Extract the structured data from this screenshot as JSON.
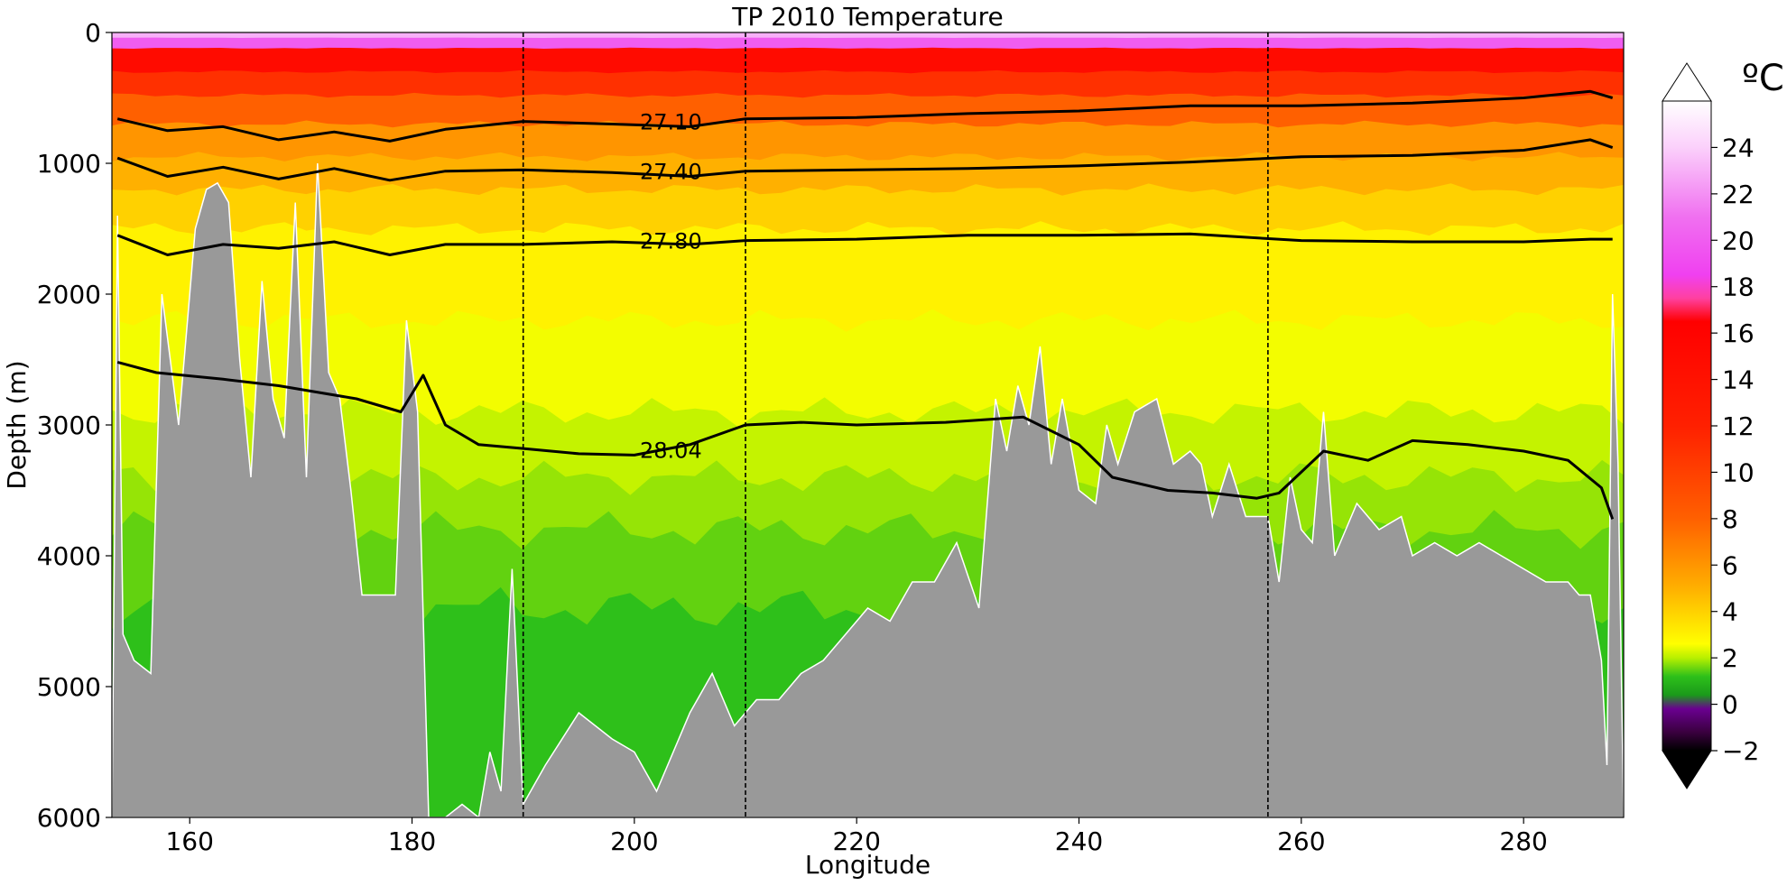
{
  "chart_data": {
    "type": "heatmap",
    "title": "TP 2010 Temperature",
    "xlabel": "Longitude",
    "ylabel": "Depth (m)",
    "xlim": [
      153,
      289
    ],
    "ylim": [
      6000,
      0
    ],
    "x_ticks": [
      160,
      180,
      200,
      220,
      240,
      260,
      280
    ],
    "y_ticks": [
      0,
      1000,
      2000,
      3000,
      4000,
      5000,
      6000
    ],
    "grid": false,
    "colorbar": {
      "unit": "ºC",
      "range": [
        -2,
        26
      ],
      "ticks": [
        -2,
        0,
        2,
        4,
        6,
        8,
        10,
        12,
        14,
        16,
        18,
        20,
        22,
        24
      ],
      "stops": [
        {
          "t": -2,
          "color": "#000000"
        },
        {
          "t": -1.2,
          "color": "#3a003f"
        },
        {
          "t": -0.2,
          "color": "#6a0090"
        },
        {
          "t": 0.4,
          "color": "#1a9a1a"
        },
        {
          "t": 1.2,
          "color": "#2ec01a"
        },
        {
          "t": 2.0,
          "color": "#b8f000"
        },
        {
          "t": 2.6,
          "color": "#ffff00"
        },
        {
          "t": 5.0,
          "color": "#ffb000"
        },
        {
          "t": 8.0,
          "color": "#ff6000"
        },
        {
          "t": 12.0,
          "color": "#ff2000"
        },
        {
          "t": 16.5,
          "color": "#ff0000"
        },
        {
          "t": 17.5,
          "color": "#ff40a0"
        },
        {
          "t": 18.5,
          "color": "#f040f0"
        },
        {
          "t": 21.0,
          "color": "#f070f0"
        },
        {
          "t": 24.0,
          "color": "#fbd0fb"
        },
        {
          "t": 26.0,
          "color": "#ffffff"
        }
      ]
    },
    "temperature_layers": [
      {
        "t": 1.2,
        "base_depth": 6000
      },
      {
        "t": 1.5,
        "base_depth": 4400
      },
      {
        "t": 1.8,
        "base_depth": 3800
      },
      {
        "t": 2.1,
        "base_depth": 3400
      },
      {
        "t": 2.5,
        "base_depth": 2900
      },
      {
        "t": 3.0,
        "base_depth": 2200
      },
      {
        "t": 4.0,
        "base_depth": 1500
      },
      {
        "t": 5.0,
        "base_depth": 1200
      },
      {
        "t": 6.0,
        "base_depth": 950
      },
      {
        "t": 8.0,
        "base_depth": 700
      },
      {
        "t": 11.0,
        "base_depth": 480
      },
      {
        "t": 15.0,
        "base_depth": 300
      },
      {
        "t": 20.0,
        "base_depth": 120
      },
      {
        "t": 23.0,
        "base_depth": 40
      }
    ],
    "density_contours": [
      {
        "label": "27.10",
        "label_x": 200.5,
        "label_depth": 680,
        "x": [
          153.5,
          158,
          163,
          168,
          173,
          178,
          183,
          190,
          198,
          205,
          210,
          220,
          230,
          240,
          250,
          260,
          270,
          280,
          286,
          288
        ],
        "depth": [
          660,
          750,
          720,
          820,
          760,
          830,
          740,
          680,
          700,
          720,
          660,
          650,
          620,
          600,
          560,
          560,
          540,
          500,
          450,
          500
        ]
      },
      {
        "label": "27.40",
        "label_x": 200.5,
        "label_depth": 1060,
        "x": [
          153.5,
          158,
          163,
          168,
          173,
          178,
          183,
          190,
          198,
          205,
          210,
          220,
          230,
          240,
          250,
          260,
          270,
          280,
          286,
          288
        ],
        "depth": [
          960,
          1100,
          1030,
          1120,
          1040,
          1130,
          1060,
          1050,
          1070,
          1100,
          1060,
          1050,
          1040,
          1020,
          990,
          950,
          940,
          900,
          820,
          880
        ]
      },
      {
        "label": "27.80",
        "label_x": 200.5,
        "label_depth": 1590,
        "x": [
          153.5,
          158,
          163,
          168,
          173,
          178,
          183,
          190,
          198,
          205,
          210,
          220,
          230,
          240,
          250,
          260,
          270,
          280,
          286,
          288
        ],
        "depth": [
          1550,
          1700,
          1620,
          1650,
          1600,
          1700,
          1620,
          1620,
          1600,
          1620,
          1590,
          1580,
          1550,
          1550,
          1540,
          1590,
          1600,
          1600,
          1580,
          1580
        ]
      },
      {
        "label": "28.04",
        "label_x": 200.5,
        "label_depth": 3190,
        "x": [
          153.5,
          157,
          163,
          168,
          175,
          179,
          181,
          183,
          186,
          190,
          195,
          200,
          205,
          210,
          215,
          220,
          228,
          235,
          240,
          243,
          248,
          252,
          256,
          258,
          262,
          266,
          270,
          275,
          280,
          284,
          287,
          288
        ],
        "depth": [
          2520,
          2600,
          2650,
          2700,
          2800,
          2900,
          2620,
          3000,
          3150,
          3180,
          3220,
          3230,
          3150,
          3000,
          2980,
          3000,
          2980,
          2940,
          3150,
          3400,
          3500,
          3520,
          3560,
          3520,
          3200,
          3270,
          3120,
          3150,
          3200,
          3270,
          3480,
          3720
        ]
      }
    ],
    "section_dividers_longitude": [
      190,
      210,
      257
    ],
    "bathymetry": {
      "longitude": [
        153,
        153.5,
        154,
        155,
        156.5,
        157.5,
        159,
        160.5,
        161.5,
        162.5,
        163.5,
        164.5,
        165.5,
        166.5,
        167.5,
        168.5,
        169.5,
        170.5,
        171.5,
        172.5,
        173.5,
        174.5,
        175.5,
        177,
        178.5,
        179.5,
        180.5,
        181.5,
        183,
        184.5,
        186,
        187,
        188,
        189,
        190,
        192,
        195,
        198,
        200,
        202,
        205,
        207,
        209,
        211,
        213,
        215,
        217,
        219,
        221,
        223,
        225,
        227,
        229,
        231,
        232.5,
        233.5,
        234.5,
        235.5,
        236.5,
        237.5,
        238.5,
        240,
        241.5,
        242.5,
        243.5,
        245,
        247,
        248.5,
        250,
        251,
        252,
        253.5,
        255,
        256,
        257,
        258,
        259,
        260,
        261,
        262,
        263,
        265,
        267,
        269,
        270,
        272,
        274,
        276,
        278,
        280,
        282,
        284,
        285,
        286,
        287,
        287.5,
        288,
        288.5,
        289
      ],
      "depth": [
        6000,
        1400,
        4600,
        4800,
        4900,
        2000,
        3000,
        1500,
        1200,
        1150,
        1300,
        2500,
        3400,
        1900,
        2800,
        3100,
        1300,
        3400,
        1000,
        2600,
        2800,
        3500,
        4300,
        4300,
        4300,
        2200,
        2900,
        6000,
        6000,
        5900,
        6000,
        5500,
        5800,
        4100,
        5900,
        5600,
        5200,
        5400,
        5500,
        5800,
        5200,
        4900,
        5300,
        5100,
        5100,
        4900,
        4800,
        4600,
        4400,
        4500,
        4200,
        4200,
        3900,
        4400,
        2800,
        3200,
        2700,
        3000,
        2400,
        3300,
        2800,
        3500,
        3600,
        3000,
        3300,
        2900,
        2800,
        3300,
        3200,
        3300,
        3700,
        3300,
        3700,
        3700,
        3700,
        4200,
        3400,
        3800,
        3900,
        2900,
        4000,
        3600,
        3800,
        3700,
        4000,
        3900,
        4000,
        3900,
        4000,
        4100,
        4200,
        4200,
        4300,
        4300,
        4800,
        5600,
        2000,
        3300,
        6000
      ]
    }
  }
}
